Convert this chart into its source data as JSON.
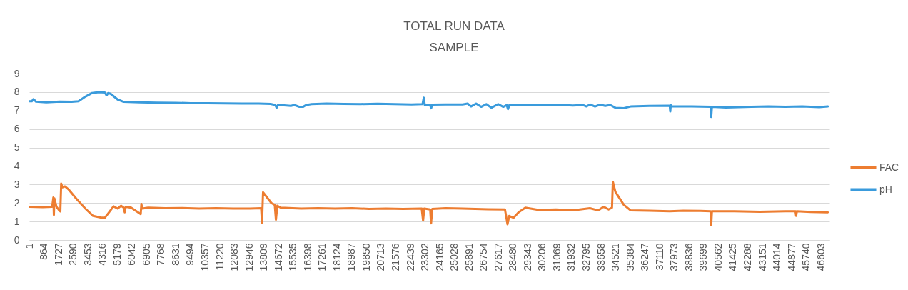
{
  "chart_data": {
    "type": "line",
    "title": "TOTAL RUN DATA",
    "subtitle": "SAMPLE",
    "xlim": [
      1,
      47100
    ],
    "xticks": [
      1,
      864,
      1727,
      2590,
      3453,
      4316,
      5179,
      6042,
      6905,
      7768,
      8631,
      9494,
      10357,
      11220,
      12083,
      12946,
      13809,
      14672,
      15535,
      16398,
      17261,
      18124,
      18987,
      19850,
      20713,
      21576,
      22439,
      23302,
      24165,
      25028,
      25891,
      26754,
      27617,
      28480,
      29343,
      30206,
      31069,
      31932,
      32795,
      33658,
      34521,
      35384,
      36247,
      37110,
      37973,
      38836,
      39699,
      40562,
      41425,
      42288,
      43151,
      44014,
      44877,
      45740,
      46603
    ],
    "ylim": [
      0,
      9
    ],
    "yticks": [
      0,
      1,
      2,
      3,
      4,
      5,
      6,
      7,
      8,
      9
    ],
    "grid": "y",
    "legend": "right",
    "series": [
      {
        "name": "FAC",
        "color": "#ed7d31",
        "x": [
          1,
          800,
          1350,
          1420,
          1450,
          1480,
          1600,
          1750,
          1830,
          1880,
          1950,
          2100,
          2300,
          2800,
          3300,
          3760,
          4200,
          4450,
          4700,
          4960,
          5200,
          5400,
          5560,
          5620,
          5680,
          6000,
          6560,
          6600,
          6650,
          7000,
          8000,
          9000,
          10000,
          11000,
          12000,
          13000,
          13650,
          13700,
          13760,
          14000,
          14250,
          14450,
          14520,
          14600,
          14800,
          16000,
          17000,
          18000,
          19000,
          20000,
          21000,
          22000,
          23100,
          23180,
          23250,
          23600,
          23650,
          23720,
          24500,
          25500,
          27000,
          28000,
          28150,
          28250,
          28500,
          28800,
          29200,
          30000,
          31000,
          32000,
          33000,
          33500,
          33800,
          34100,
          34300,
          34350,
          34500,
          35000,
          35400,
          36500,
          37700,
          38500,
          39500,
          40100,
          40140,
          40180,
          41500,
          43000,
          44500,
          45100,
          45140,
          45180,
          46000,
          47000
        ],
        "values": [
          1.8,
          1.78,
          1.8,
          2.3,
          1.35,
          2.25,
          1.8,
          1.62,
          1.55,
          3.05,
          2.85,
          2.9,
          2.75,
          2.2,
          1.7,
          1.3,
          1.22,
          1.2,
          1.5,
          1.82,
          1.7,
          1.85,
          1.75,
          1.5,
          1.8,
          1.75,
          1.4,
          1.95,
          1.7,
          1.75,
          1.72,
          1.73,
          1.7,
          1.72,
          1.7,
          1.7,
          1.72,
          0.92,
          2.58,
          2.3,
          2.0,
          1.9,
          1.1,
          1.85,
          1.75,
          1.7,
          1.72,
          1.7,
          1.72,
          1.68,
          1.7,
          1.68,
          1.7,
          1.05,
          1.7,
          1.65,
          0.9,
          1.68,
          1.72,
          1.7,
          1.66,
          1.65,
          0.85,
          1.3,
          1.2,
          1.5,
          1.75,
          1.62,
          1.65,
          1.6,
          1.72,
          1.6,
          1.8,
          1.65,
          1.75,
          3.15,
          2.6,
          1.9,
          1.6,
          1.58,
          1.55,
          1.58,
          1.57,
          1.55,
          0.8,
          1.55,
          1.55,
          1.53,
          1.55,
          1.55,
          1.3,
          1.55,
          1.52,
          1.5
        ]
      },
      {
        "name": "pH",
        "color": "#3a9bdc",
        "x": [
          1,
          150,
          250,
          400,
          1000,
          1800,
          2500,
          2900,
          3300,
          3700,
          4100,
          4450,
          4550,
          4650,
          4800,
          5200,
          5560,
          6500,
          7500,
          8631,
          9500,
          10500,
          11500,
          12500,
          13500,
          14200,
          14480,
          14560,
          14640,
          15000,
          15400,
          15600,
          15900,
          16110,
          16300,
          16620,
          17500,
          18500,
          19500,
          20500,
          21500,
          22500,
          23150,
          23220,
          23280,
          23400,
          23600,
          23650,
          23720,
          24500,
          25500,
          25800,
          26000,
          26300,
          26600,
          26900,
          27200,
          27600,
          27900,
          28100,
          28180,
          28260,
          29000,
          30000,
          31000,
          32000,
          32600,
          32800,
          33000,
          33300,
          33600,
          33900,
          34200,
          34500,
          35000,
          35400,
          36500,
          37700,
          37730,
          37760,
          37800,
          39000,
          40100,
          40140,
          40180,
          41000,
          42500,
          43500,
          44500,
          45500,
          46500,
          47000
        ],
        "values": [
          7.5,
          7.5,
          7.62,
          7.48,
          7.45,
          7.48,
          7.47,
          7.5,
          7.75,
          7.95,
          8.0,
          7.98,
          7.82,
          7.95,
          7.9,
          7.6,
          7.47,
          7.45,
          7.43,
          7.42,
          7.4,
          7.4,
          7.39,
          7.38,
          7.38,
          7.36,
          7.3,
          7.15,
          7.3,
          7.28,
          7.25,
          7.3,
          7.2,
          7.2,
          7.3,
          7.35,
          7.38,
          7.36,
          7.35,
          7.37,
          7.35,
          7.33,
          7.35,
          7.7,
          7.3,
          7.32,
          7.3,
          7.12,
          7.32,
          7.33,
          7.33,
          7.38,
          7.22,
          7.38,
          7.2,
          7.35,
          7.15,
          7.35,
          7.2,
          7.3,
          7.08,
          7.3,
          7.32,
          7.28,
          7.32,
          7.27,
          7.3,
          7.22,
          7.33,
          7.22,
          7.32,
          7.25,
          7.3,
          7.15,
          7.13,
          7.22,
          7.25,
          7.26,
          6.95,
          7.3,
          7.22,
          7.22,
          7.2,
          6.65,
          7.2,
          7.17,
          7.2,
          7.22,
          7.2,
          7.22,
          7.18,
          7.22
        ]
      }
    ]
  }
}
